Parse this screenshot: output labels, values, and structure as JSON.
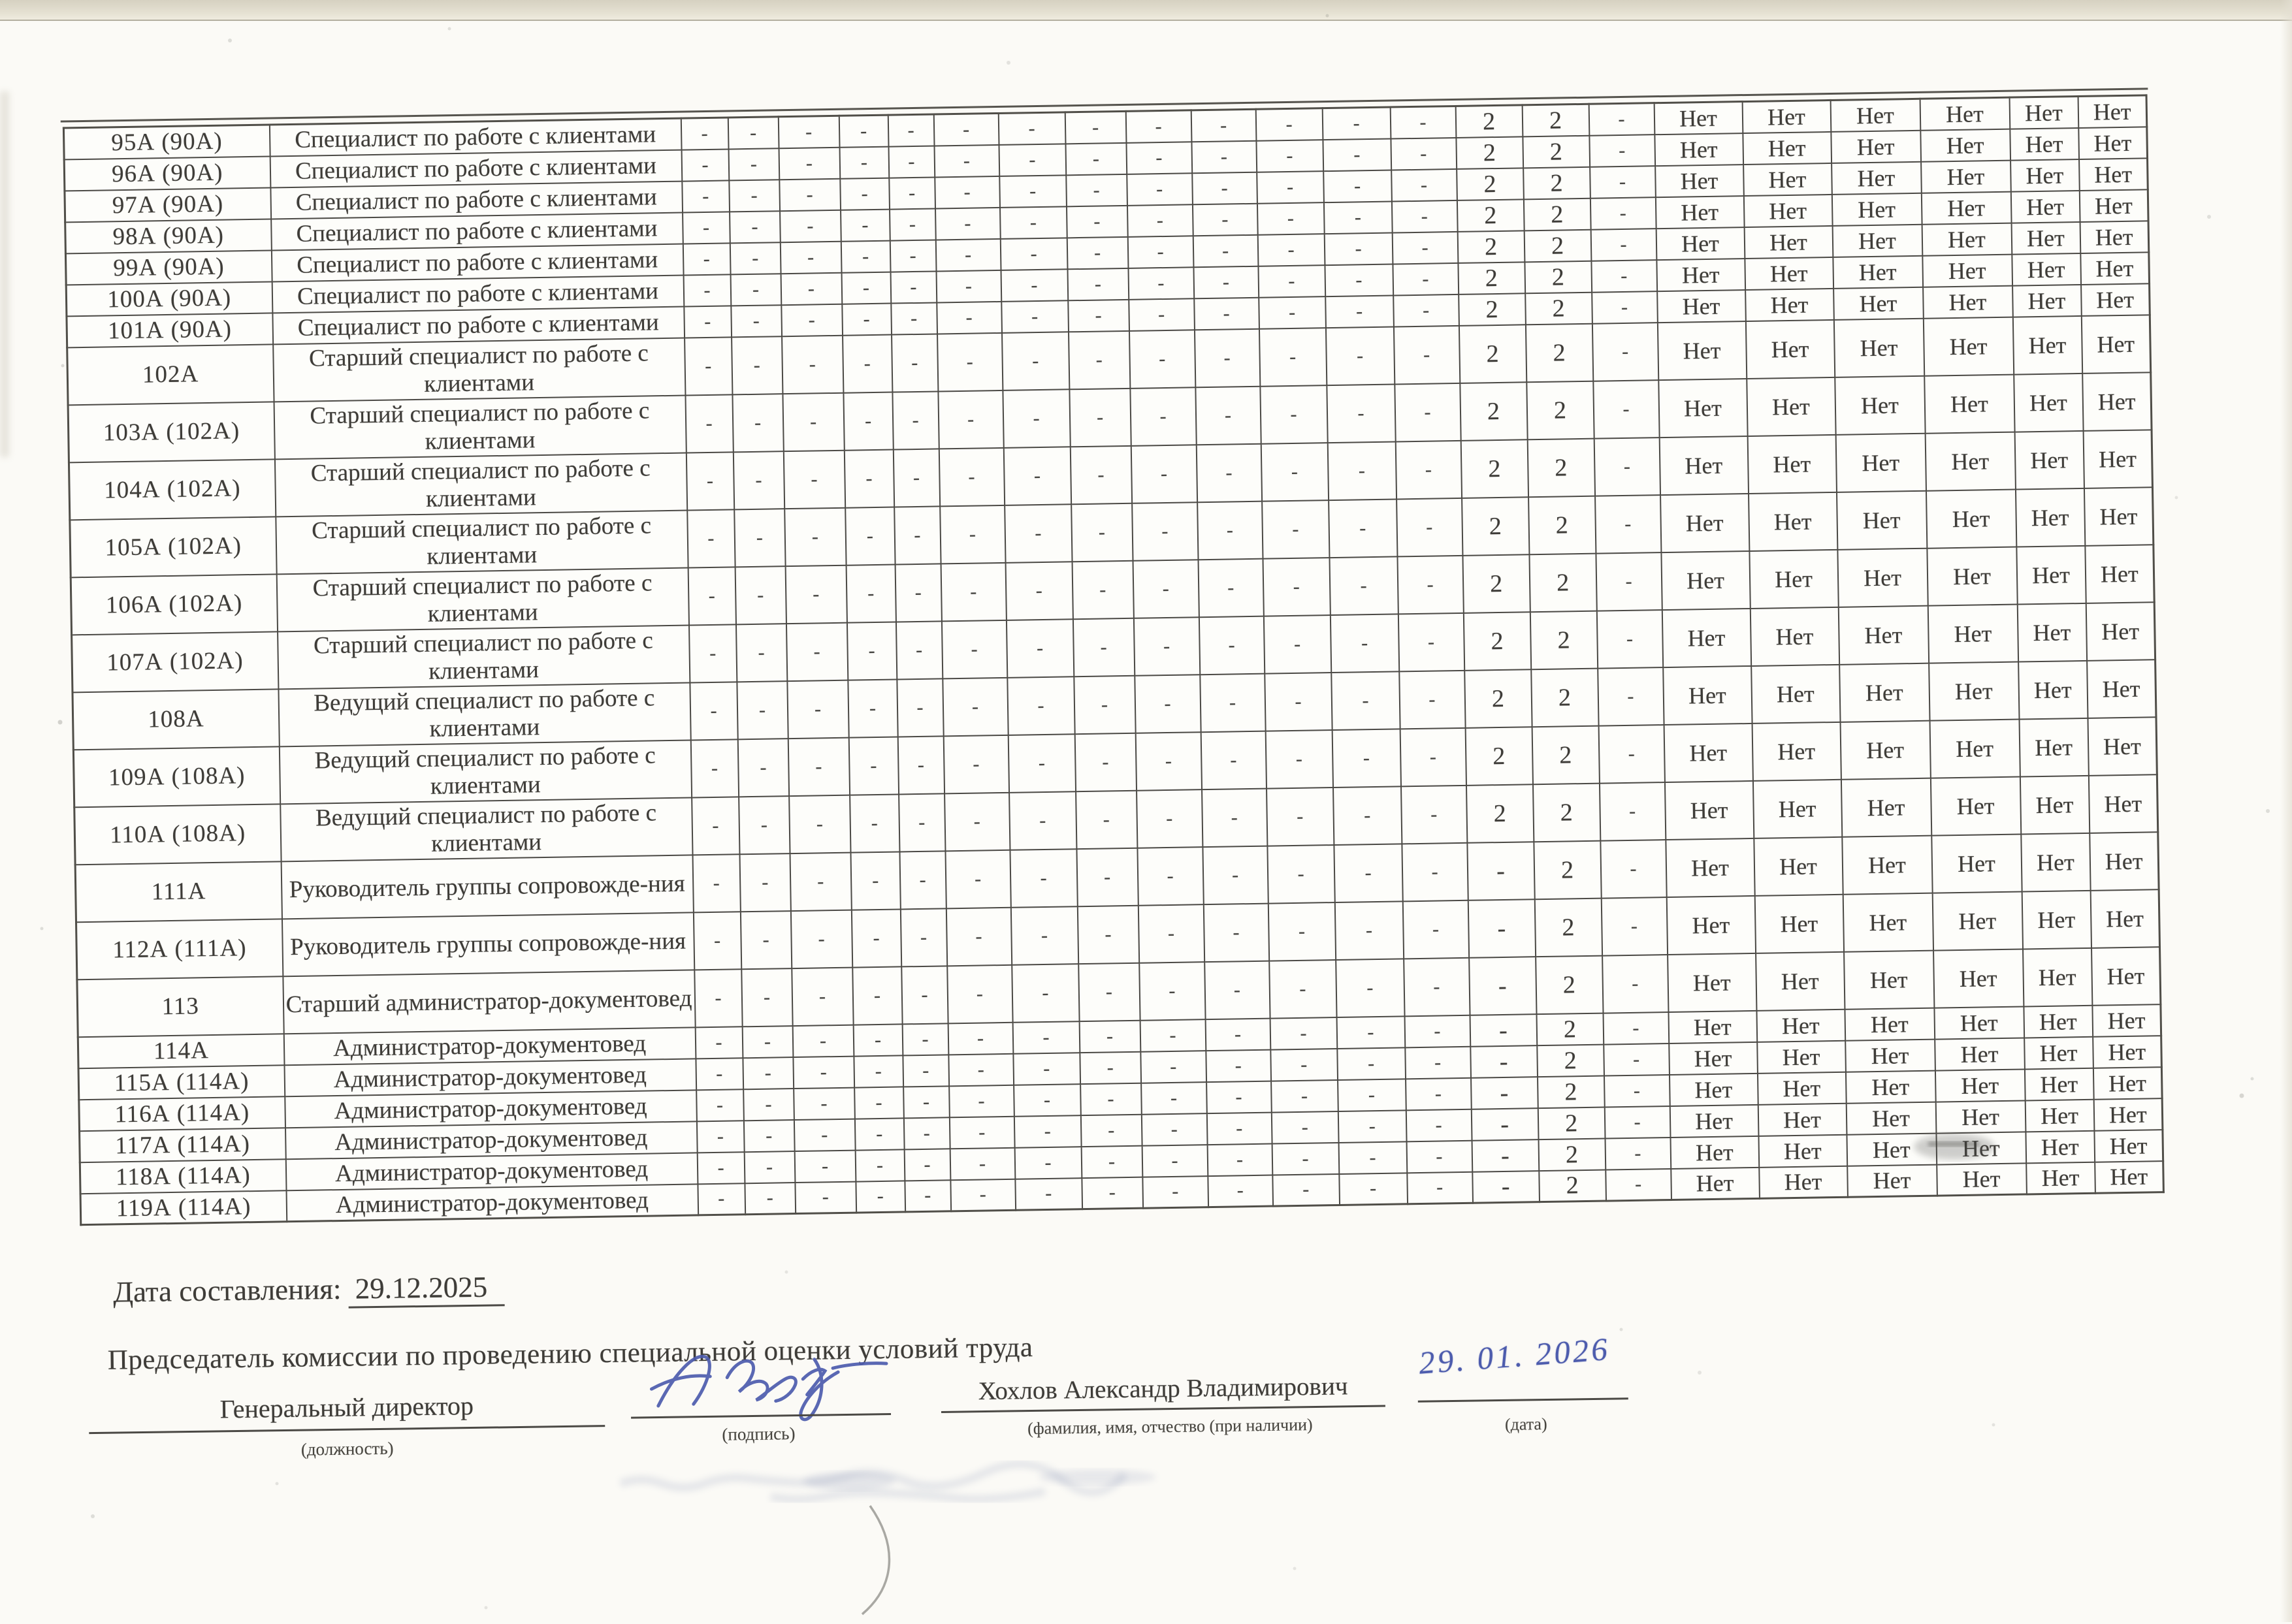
{
  "table": {
    "factor_columns": 13,
    "benefit_columns": 6,
    "dash": "-",
    "no": "Нет",
    "class_value": "2",
    "rows": [
      {
        "num": "95А (90А)",
        "title": "Специалист по работе с клиентами",
        "lines": 1,
        "cls": [
          "2",
          "2"
        ]
      },
      {
        "num": "96А (90А)",
        "title": "Специалист по работе с клиентами",
        "lines": 1,
        "cls": [
          "2",
          "2"
        ]
      },
      {
        "num": "97А (90А)",
        "title": "Специалист по работе с клиентами",
        "lines": 1,
        "cls": [
          "2",
          "2"
        ]
      },
      {
        "num": "98А (90А)",
        "title": "Специалист по работе с клиентами",
        "lines": 1,
        "cls": [
          "2",
          "2"
        ]
      },
      {
        "num": "99А (90А)",
        "title": "Специалист по работе с клиентами",
        "lines": 1,
        "cls": [
          "2",
          "2"
        ]
      },
      {
        "num": "100А (90А)",
        "title": "Специалист по работе с клиентами",
        "lines": 1,
        "cls": [
          "2",
          "2"
        ]
      },
      {
        "num": "101А (90А)",
        "title": "Специалист по работе с клиентами",
        "lines": 1,
        "cls": [
          "2",
          "2"
        ]
      },
      {
        "num": "102А",
        "title": "Старший специалист по работе с клиентами",
        "lines": 2,
        "cls": [
          "2",
          "2"
        ]
      },
      {
        "num": "103А (102А)",
        "title": "Старший специалист по работе с клиентами",
        "lines": 2,
        "cls": [
          "2",
          "2"
        ]
      },
      {
        "num": "104А (102А)",
        "title": "Старший специалист по работе с клиентами",
        "lines": 2,
        "cls": [
          "2",
          "2"
        ]
      },
      {
        "num": "105А (102А)",
        "title": "Старший специалист по работе с клиентами",
        "lines": 2,
        "cls": [
          "2",
          "2"
        ]
      },
      {
        "num": "106А (102А)",
        "title": "Старший специалист по работе с клиентами",
        "lines": 2,
        "cls": [
          "2",
          "2"
        ]
      },
      {
        "num": "107А (102А)",
        "title": "Старший специалист по работе с клиентами",
        "lines": 2,
        "cls": [
          "2",
          "2"
        ]
      },
      {
        "num": "108А",
        "title": "Ведущий специалист по работе с клиентами",
        "lines": 2,
        "cls": [
          "2",
          "2"
        ]
      },
      {
        "num": "109А (108А)",
        "title": "Ведущий специалист по работе с клиентами",
        "lines": 2,
        "cls": [
          "2",
          "2"
        ]
      },
      {
        "num": "110А (108А)",
        "title": "Ведущий специалист по работе с клиентами",
        "lines": 2,
        "cls": [
          "2",
          "2"
        ]
      },
      {
        "num": "111А",
        "title": "Руководитель группы сопровожде-ния",
        "lines": 2,
        "cls": [
          "-",
          "2"
        ]
      },
      {
        "num": "112А (111А)",
        "title": "Руководитель группы сопровожде-ния",
        "lines": 2,
        "cls": [
          "-",
          "2"
        ]
      },
      {
        "num": "113",
        "title": "Старший администратор-документовед",
        "lines": 2,
        "cls": [
          "-",
          "2"
        ]
      },
      {
        "num": "114А",
        "title": "Администратор-документовед",
        "lines": 1,
        "cls": [
          "-",
          "2"
        ]
      },
      {
        "num": "115А (114А)",
        "title": "Администратор-документовед",
        "lines": 1,
        "cls": [
          "-",
          "2"
        ]
      },
      {
        "num": "116А (114А)",
        "title": "Администратор-документовед",
        "lines": 1,
        "cls": [
          "-",
          "2"
        ]
      },
      {
        "num": "117А (114А)",
        "title": "Администратор-документовед",
        "lines": 1,
        "cls": [
          "-",
          "2"
        ]
      },
      {
        "num": "118А (114А)",
        "title": "Администратор-документовед",
        "lines": 1,
        "cls": [
          "-",
          "2"
        ]
      },
      {
        "num": "119А (114А)",
        "title": "Администратор-документовед",
        "lines": 1,
        "cls": [
          "-",
          "2"
        ]
      }
    ]
  },
  "footer": {
    "date_label": "Дата составления:",
    "date_value": "29.12.2025",
    "chairman_heading": "Председатель комиссии по проведению специальной оценки условий труда",
    "position_value": "Генеральный директор",
    "position_caption": "(должность)",
    "signature_caption": "(подпись)",
    "name_value": "Хохлов Александр Владимирович",
    "name_caption": "(фамилия, имя, отчество (при наличии)",
    "date_caption": "(дата)",
    "handwritten_date": "29. 01. 2026",
    "ink_color": "#4d5cad"
  }
}
